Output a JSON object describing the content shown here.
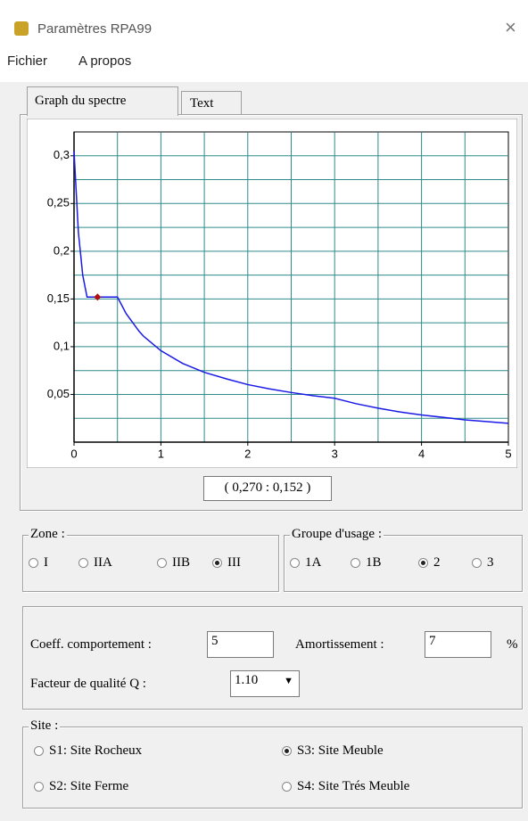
{
  "window": {
    "title": "Paramètres RPA99"
  },
  "menu": [
    "Fichier",
    "A propos"
  ],
  "tabs": [
    "Graph du spectre",
    "Text"
  ],
  "chart_data": {
    "type": "line",
    "x": [
      0,
      0.05,
      0.1,
      0.15,
      0.5,
      0.6,
      0.75,
      0.8,
      1,
      1.25,
      1.5,
      1.75,
      2,
      2.25,
      2.5,
      2.75,
      3,
      3.25,
      3.5,
      3.75,
      4,
      4.5,
      5
    ],
    "series": [
      {
        "color": "#1a1ae6",
        "values": [
          0.305,
          0.22,
          0.175,
          0.152,
          0.152,
          0.1346,
          0.116,
          0.111,
          0.0958,
          0.0825,
          0.0731,
          0.0664,
          0.0603,
          0.0558,
          0.052,
          0.0487,
          0.046,
          0.0402,
          0.0356,
          0.0316,
          0.0285,
          0.0234,
          0.0197
        ]
      }
    ],
    "marker": {
      "x": 0.27,
      "y": 0.152,
      "color": "#b01010"
    },
    "xlim": [
      0,
      5
    ],
    "ylim": [
      0,
      0.325
    ],
    "xticks": [
      0,
      1,
      2,
      3,
      4,
      5
    ],
    "yticks": [
      {
        "value": 0.05,
        "label": "0,05"
      },
      {
        "value": 0.1,
        "label": "0,1"
      },
      {
        "value": 0.15,
        "label": "0,15"
      },
      {
        "value": 0.2,
        "label": "0,2"
      },
      {
        "value": 0.25,
        "label": "0,25"
      },
      {
        "value": 0.3,
        "label": "0,3"
      }
    ],
    "xgrid": [
      0.5,
      1,
      1.5,
      2,
      2.5,
      3,
      3.5,
      4,
      4.5
    ],
    "ygrid": [
      0.025,
      0.05,
      0.075,
      0.1,
      0.125,
      0.15,
      0.175,
      0.2,
      0.225,
      0.25,
      0.275,
      0.3
    ],
    "grid_color": "#2e8b8b"
  },
  "readout": "( 0,270 : 0,152 )",
  "zone": {
    "label": "Zone :",
    "options": [
      "I",
      "IIA",
      "IIB",
      "III"
    ],
    "selected": 3
  },
  "usage": {
    "label": "Groupe d'usage :",
    "options": [
      "1A",
      "1B",
      "2",
      "3"
    ],
    "selected": 2
  },
  "coeff": {
    "label": "Coeff. comportement :",
    "value": "5"
  },
  "amort": {
    "label": "Amortissement :",
    "value": "7",
    "unit": "%"
  },
  "quality": {
    "label": "Facteur de qualité Q :",
    "value": "1.10"
  },
  "site": {
    "label": "Site :",
    "options": [
      "S1: Site Rocheux",
      "S2: Site Ferme",
      "S3: Site Meuble",
      "S4: Site Trés Meuble"
    ],
    "selected": 2
  }
}
